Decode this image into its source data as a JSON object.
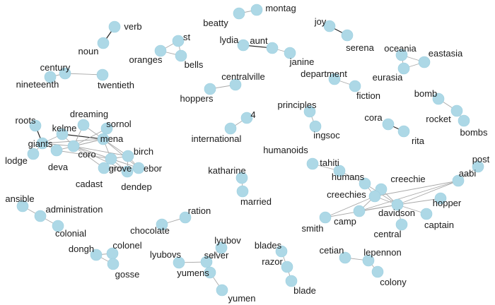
{
  "diagram": {
    "type": "network-graph",
    "colors": {
      "node": "#add8e6",
      "edge": "#a9a9a9",
      "edge_strong": "#222222",
      "label": "#1a1a1a"
    },
    "nodes": [
      {
        "id": "verb",
        "label": "verb"
      },
      {
        "id": "noun",
        "label": "noun"
      },
      {
        "id": "st",
        "label": "st"
      },
      {
        "id": "oranges",
        "label": "oranges"
      },
      {
        "id": "bells",
        "label": "bells"
      },
      {
        "id": "beatty",
        "label": "beatty"
      },
      {
        "id": "montag",
        "label": "montag"
      },
      {
        "id": "lydia",
        "label": "lydia"
      },
      {
        "id": "aunt",
        "label": "aunt"
      },
      {
        "id": "janine",
        "label": "janine"
      },
      {
        "id": "joy",
        "label": "joy"
      },
      {
        "id": "serena",
        "label": "serena"
      },
      {
        "id": "oceania",
        "label": "oceania"
      },
      {
        "id": "eastasia",
        "label": "eastasia"
      },
      {
        "id": "eurasia",
        "label": "eurasia"
      },
      {
        "id": "century",
        "label": "century"
      },
      {
        "id": "nineteenth",
        "label": "nineteenth"
      },
      {
        "id": "twentieth",
        "label": "twentieth"
      },
      {
        "id": "centralville",
        "label": "centralville"
      },
      {
        "id": "hoppers",
        "label": "hoppers"
      },
      {
        "id": "department",
        "label": "department"
      },
      {
        "id": "fiction",
        "label": "fiction"
      },
      {
        "id": "bomb",
        "label": "bomb"
      },
      {
        "id": "rocket",
        "label": "rocket"
      },
      {
        "id": "bombs",
        "label": "bombs"
      },
      {
        "id": "principles",
        "label": "principles"
      },
      {
        "id": "ingsoc",
        "label": "ingsoc"
      },
      {
        "id": "cora",
        "label": "cora"
      },
      {
        "id": "rita",
        "label": "rita"
      },
      {
        "id": "4",
        "label": "4"
      },
      {
        "id": "international",
        "label": "international"
      },
      {
        "id": "roots",
        "label": "roots"
      },
      {
        "id": "dreaming",
        "label": "dreaming"
      },
      {
        "id": "sornol",
        "label": "sornol"
      },
      {
        "id": "kelme",
        "label": "kelme"
      },
      {
        "id": "mena",
        "label": "mena"
      },
      {
        "id": "giants",
        "label": "giants"
      },
      {
        "id": "coro",
        "label": "coro"
      },
      {
        "id": "lodge",
        "label": "lodge"
      },
      {
        "id": "deva",
        "label": "deva"
      },
      {
        "id": "birch",
        "label": "birch"
      },
      {
        "id": "grove",
        "label": "grove"
      },
      {
        "id": "ebor",
        "label": "ebor"
      },
      {
        "id": "cadast",
        "label": "cadast"
      },
      {
        "id": "dendep",
        "label": "dendep"
      },
      {
        "id": "humanoids",
        "label": "humanoids"
      },
      {
        "id": "tahiti",
        "label": "tahiti"
      },
      {
        "id": "humans",
        "label": "humans"
      },
      {
        "id": "creechie",
        "label": "creechie"
      },
      {
        "id": "creechies",
        "label": "creechies"
      },
      {
        "id": "aabi",
        "label": "aabi"
      },
      {
        "id": "post",
        "label": "post"
      },
      {
        "id": "hopper",
        "label": "hopper"
      },
      {
        "id": "davidson",
        "label": "davidson"
      },
      {
        "id": "camp",
        "label": "camp"
      },
      {
        "id": "smith",
        "label": "smith"
      },
      {
        "id": "captain",
        "label": "captain"
      },
      {
        "id": "central",
        "label": "central"
      },
      {
        "id": "katharine",
        "label": "katharine"
      },
      {
        "id": "married",
        "label": "married"
      },
      {
        "id": "ansible",
        "label": "ansible"
      },
      {
        "id": "administration",
        "label": "administration"
      },
      {
        "id": "colonial",
        "label": "colonial"
      },
      {
        "id": "ration",
        "label": "ration"
      },
      {
        "id": "chocolate",
        "label": "chocolate"
      },
      {
        "id": "dongh",
        "label": "dongh"
      },
      {
        "id": "colonel",
        "label": "colonel"
      },
      {
        "id": "gosse",
        "label": "gosse"
      },
      {
        "id": "lyubov",
        "label": "lyubov"
      },
      {
        "id": "lyubovs",
        "label": "lyubovs"
      },
      {
        "id": "selver",
        "label": "selver"
      },
      {
        "id": "yumens",
        "label": "yumens"
      },
      {
        "id": "yumen",
        "label": "yumen"
      },
      {
        "id": "blades",
        "label": "blades"
      },
      {
        "id": "razor",
        "label": "razor"
      },
      {
        "id": "blade",
        "label": "blade"
      },
      {
        "id": "cetian",
        "label": "cetian"
      },
      {
        "id": "lepennon",
        "label": "lepennon"
      },
      {
        "id": "colony",
        "label": "colony"
      }
    ],
    "edges": [
      {
        "from": "verb",
        "to": "noun",
        "strong": true
      },
      {
        "from": "st",
        "to": "oranges",
        "strong": false
      },
      {
        "from": "st",
        "to": "bells",
        "strong": false
      },
      {
        "from": "oranges",
        "to": "bells",
        "strong": false
      },
      {
        "from": "beatty",
        "to": "montag",
        "strong": false
      },
      {
        "from": "lydia",
        "to": "aunt",
        "strong": true
      },
      {
        "from": "aunt",
        "to": "janine",
        "strong": false
      },
      {
        "from": "joy",
        "to": "serena",
        "strong": true
      },
      {
        "from": "oceania",
        "to": "eastasia",
        "strong": false
      },
      {
        "from": "oceania",
        "to": "eurasia",
        "strong": false
      },
      {
        "from": "eastasia",
        "to": "eurasia",
        "strong": false
      },
      {
        "from": "century",
        "to": "nineteenth",
        "strong": false
      },
      {
        "from": "century",
        "to": "twentieth",
        "strong": false
      },
      {
        "from": "centralville",
        "to": "hoppers",
        "strong": false
      },
      {
        "from": "department",
        "to": "fiction",
        "strong": false
      },
      {
        "from": "bomb",
        "to": "rocket",
        "strong": false
      },
      {
        "from": "rocket",
        "to": "bombs",
        "strong": false
      },
      {
        "from": "principles",
        "to": "ingsoc",
        "strong": false
      },
      {
        "from": "cora",
        "to": "rita",
        "strong": true
      },
      {
        "from": "4",
        "to": "international",
        "strong": false
      },
      {
        "from": "roots",
        "to": "giants",
        "strong": true
      },
      {
        "from": "kelme",
        "to": "mena",
        "strong": true
      },
      {
        "from": "kelme",
        "to": "giants",
        "strong": false
      },
      {
        "from": "kelme",
        "to": "coro",
        "strong": false
      },
      {
        "from": "dreaming",
        "to": "coro",
        "strong": false
      },
      {
        "from": "dreaming",
        "to": "mena",
        "strong": false
      },
      {
        "from": "sornol",
        "to": "coro",
        "strong": false
      },
      {
        "from": "sornol",
        "to": "mena",
        "strong": false
      },
      {
        "from": "mena",
        "to": "coro",
        "strong": false
      },
      {
        "from": "mena",
        "to": "deva",
        "strong": false
      },
      {
        "from": "mena",
        "to": "giants",
        "strong": false
      },
      {
        "from": "giants",
        "to": "coro",
        "strong": false
      },
      {
        "from": "giants",
        "to": "lodge",
        "strong": false
      },
      {
        "from": "giants",
        "to": "deva",
        "strong": false
      },
      {
        "from": "deva",
        "to": "coro",
        "strong": false
      },
      {
        "from": "coro",
        "to": "birch",
        "strong": false
      },
      {
        "from": "coro",
        "to": "grove",
        "strong": false
      },
      {
        "from": "coro",
        "to": "ebor",
        "strong": false
      },
      {
        "from": "coro",
        "to": "cadast",
        "strong": false
      },
      {
        "from": "coro",
        "to": "dendep",
        "strong": false
      },
      {
        "from": "mena",
        "to": "birch",
        "strong": false
      },
      {
        "from": "mena",
        "to": "grove",
        "strong": false
      },
      {
        "from": "mena",
        "to": "ebor",
        "strong": false
      },
      {
        "from": "deva",
        "to": "grove",
        "strong": false
      },
      {
        "from": "birch",
        "to": "grove",
        "strong": false
      },
      {
        "from": "birch",
        "to": "ebor",
        "strong": false
      },
      {
        "from": "birch",
        "to": "dendep",
        "strong": false
      },
      {
        "from": "grove",
        "to": "ebor",
        "strong": false
      },
      {
        "from": "grove",
        "to": "cadast",
        "strong": false
      },
      {
        "from": "grove",
        "to": "dendep",
        "strong": false
      },
      {
        "from": "ebor",
        "to": "dendep",
        "strong": false
      },
      {
        "from": "cadast",
        "to": "dendep",
        "strong": false
      },
      {
        "from": "cadast",
        "to": "ebor",
        "strong": false
      },
      {
        "from": "humanoids",
        "to": "tahiti",
        "strong": false
      },
      {
        "from": "tahiti",
        "to": "humans",
        "strong": false
      },
      {
        "from": "humans",
        "to": "creechies",
        "strong": false
      },
      {
        "from": "humans",
        "to": "davidson",
        "strong": false
      },
      {
        "from": "creechie",
        "to": "creechies",
        "strong": false
      },
      {
        "from": "creechie",
        "to": "davidson",
        "strong": false
      },
      {
        "from": "creechies",
        "to": "davidson",
        "strong": false
      },
      {
        "from": "creechies",
        "to": "camp",
        "strong": false
      },
      {
        "from": "creechies",
        "to": "smith",
        "strong": false
      },
      {
        "from": "davidson",
        "to": "camp",
        "strong": false
      },
      {
        "from": "davidson",
        "to": "smith",
        "strong": false
      },
      {
        "from": "davidson",
        "to": "captain",
        "strong": false
      },
      {
        "from": "davidson",
        "to": "central",
        "strong": false
      },
      {
        "from": "davidson",
        "to": "hopper",
        "strong": false
      },
      {
        "from": "davidson",
        "to": "aabi",
        "strong": false
      },
      {
        "from": "creechies",
        "to": "aabi",
        "strong": false
      },
      {
        "from": "camp",
        "to": "aabi",
        "strong": false
      },
      {
        "from": "aabi",
        "to": "post",
        "strong": false
      },
      {
        "from": "katharine",
        "to": "married",
        "strong": false
      },
      {
        "from": "ansible",
        "to": "administration",
        "strong": false
      },
      {
        "from": "administration",
        "to": "colonial",
        "strong": false
      },
      {
        "from": "ration",
        "to": "chocolate",
        "strong": false
      },
      {
        "from": "dongh",
        "to": "colonel",
        "strong": false
      },
      {
        "from": "dongh",
        "to": "gosse",
        "strong": false
      },
      {
        "from": "colonel",
        "to": "gosse",
        "strong": false
      },
      {
        "from": "lyubov",
        "to": "selver",
        "strong": false
      },
      {
        "from": "lyubovs",
        "to": "selver",
        "strong": false
      },
      {
        "from": "selver",
        "to": "yumens",
        "strong": false
      },
      {
        "from": "yumens",
        "to": "yumen",
        "strong": false
      },
      {
        "from": "blades",
        "to": "razor",
        "strong": false
      },
      {
        "from": "razor",
        "to": "blade",
        "strong": false
      },
      {
        "from": "cetian",
        "to": "lepennon",
        "strong": false
      },
      {
        "from": "lepennon",
        "to": "colony",
        "strong": false
      }
    ]
  }
}
